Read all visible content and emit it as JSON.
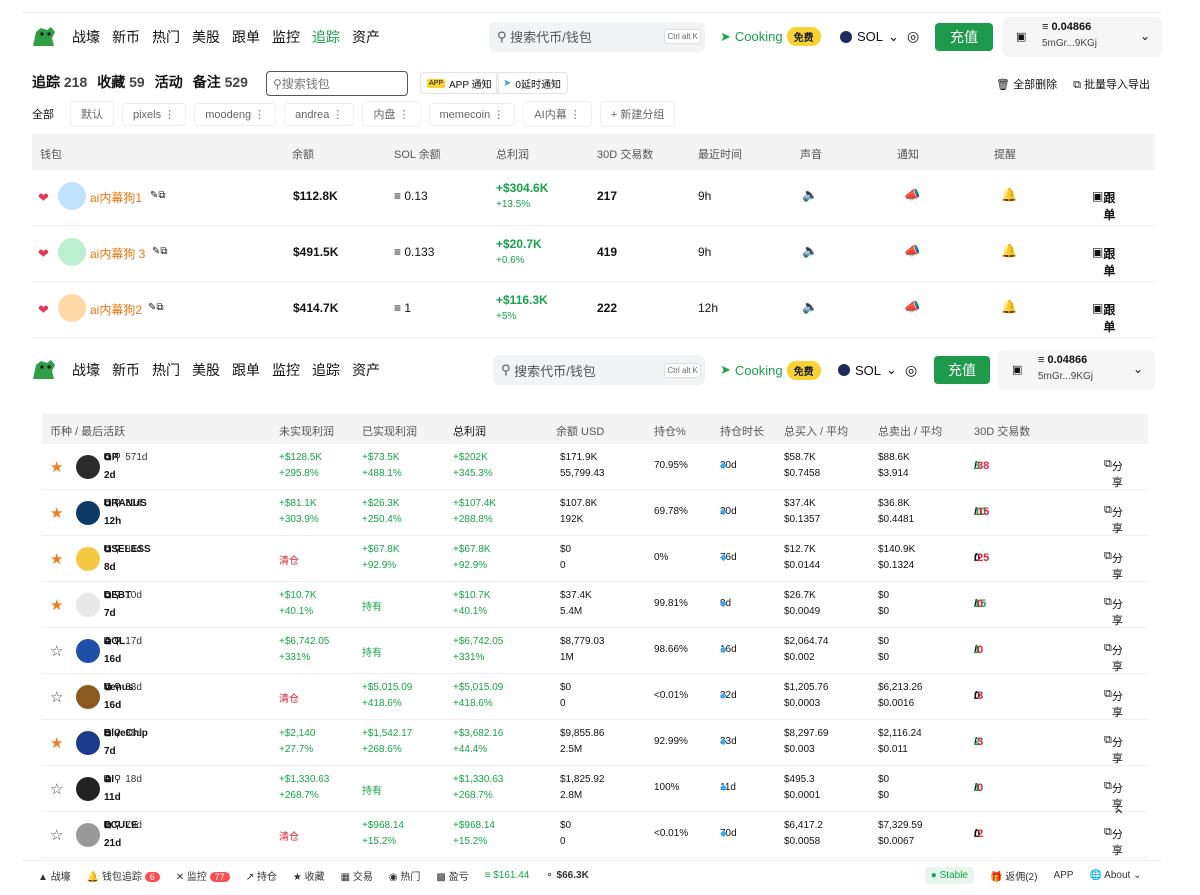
{
  "nav": {
    "items": [
      "战壕",
      "新币",
      "热门",
      "美股",
      "跟单",
      "监控",
      "追踪",
      "资产"
    ],
    "active_index": 6
  },
  "search": {
    "placeholder": "搜索代币/钱包",
    "shortcut": "Ctrl alt K"
  },
  "cooking": {
    "label": "Cooking",
    "badge": "免费"
  },
  "chain": {
    "label": "SOL"
  },
  "recharge": {
    "label": "充值"
  },
  "wallet": {
    "balance": "≡ 0.04866",
    "address": "5mGr...9KGj"
  },
  "stats": {
    "track_label": "追踪",
    "track": "218",
    "fav_label": "收藏",
    "fav": "59",
    "active_label": "活动",
    "active": "",
    "notes_label": "备注",
    "notes": "529"
  },
  "search2": {
    "placeholder": "搜索钱包"
  },
  "notify": {
    "app": "APP 通知",
    "tg": "0延时通知"
  },
  "actions": {
    "delete_all": "全部删除",
    "import": "批量导入导出"
  },
  "groups": {
    "all": "全部",
    "items": [
      "默认",
      "pixels ⋮",
      "moodeng ⋮",
      "andrea ⋮",
      "内盘 ⋮",
      "memecoin ⋮",
      "AI内幕 ⋮",
      "+ 新建分组"
    ]
  },
  "wallet_table": {
    "headers": [
      "钱包",
      "余额",
      "SOL 余额",
      "总利润",
      "30D 交易数",
      "最近时间",
      "声音",
      "通知",
      "提醒"
    ],
    "rows": [
      {
        "name": "ai内幕狗1",
        "balance": "$112.8K",
        "sol": "≡ 0.13",
        "profit": "+$304.6K",
        "pct": "+13.5%",
        "trades": "217",
        "time": "9h",
        "action": "跟单"
      },
      {
        "name": "ai内幕狗 3",
        "balance": "$491.5K",
        "sol": "≡ 0.133",
        "profit": "+$20.7K",
        "pct": "+0.6%",
        "trades": "419",
        "time": "9h",
        "action": "跟单"
      },
      {
        "name": "ai内幕狗2",
        "balance": "$414.7K",
        "sol": "≡ 1",
        "profit": "+$116.3K",
        "pct": "+5%",
        "trades": "222",
        "time": "12h",
        "action": "跟单"
      }
    ]
  },
  "token_table": {
    "headers": [
      "币种 / 最后活跃",
      "未实现利润",
      "已实现利润",
      "总利润",
      "余额  USD",
      "持仓%",
      "持仓时长",
      "总买入 / 平均",
      "总卖出 / 平均",
      "30D 交易数"
    ],
    "rows": [
      {
        "sym": "GP",
        "age": "571d",
        "last": "2d",
        "starred": true,
        "unreal": "+$128.5K",
        "unreal_p": "+295.8%",
        "real": "+$73.5K",
        "real_p": "+488.1%",
        "total": "+$202K",
        "total_p": "+345.3%",
        "bal": "$171.9K",
        "bal2": "55,799.43",
        "pct": "70.95%",
        "hold": "30d",
        "buy": "$58.7K",
        "buy2": "$0.7458",
        "sell": "$88.6K",
        "sell2": "$3.914",
        "tw": "3",
        "tl": "38",
        "color": "#2b2b2b"
      },
      {
        "sym": "URANUS",
        "age": "31d",
        "last": "12h",
        "starred": true,
        "unreal": "+$81.1K",
        "unreal_p": "+303.9%",
        "real": "+$26.3K",
        "real_p": "+250.4%",
        "total": "+$107.4K",
        "total_p": "+288.8%",
        "bal": "$107.8K",
        "bal2": "192K",
        "pct": "69.78%",
        "hold": "20d",
        "buy": "$37.4K",
        "buy2": "$0.1357",
        "sell": "$36.8K",
        "sell2": "$0.4481",
        "tw": "10",
        "tl": "15",
        "color": "#0d3b66"
      },
      {
        "sym": "USELESS",
        "age": "84d",
        "last": "8d",
        "starred": true,
        "unreal": "清仓",
        "unreal_p": "",
        "real": "+$67.8K",
        "real_p": "+92.9%",
        "total": "+$67.8K",
        "total_p": "+92.9%",
        "bal": "$0",
        "bal2": "0",
        "pct": "0%",
        "hold": "76d",
        "buy": "$12.7K",
        "buy2": "$0.0144",
        "sell": "$140.9K",
        "sell2": "$0.1324",
        "tw": "0",
        "tl": "25",
        "color": "#f5c842"
      },
      {
        "sym": "DEBT",
        "age": "10d",
        "last": "7d",
        "starred": true,
        "unreal": "+$10.7K",
        "unreal_p": "+40.1%",
        "real": "持有",
        "real_p": "",
        "total": "+$10.7K",
        "total_p": "+40.1%",
        "bal": "$37.4K",
        "bal2": "5.4M",
        "pct": "99.81%",
        "hold": "9d",
        "buy": "$26.7K",
        "buy2": "$0.0049",
        "sell": "$0",
        "sell2": "$0",
        "tw": "15",
        "tl": "0",
        "color": "#e8e8e8"
      },
      {
        "sym": "AOL",
        "age": "17d",
        "last": "16d",
        "starred": false,
        "unreal": "+$6,742.05",
        "unreal_p": "+331%",
        "real": "持有",
        "real_p": "",
        "total": "+$6,742.05",
        "total_p": "+331%",
        "bal": "$8,779.03",
        "bal2": "1M",
        "pct": "98.66%",
        "hold": "16d",
        "buy": "$2,064.74",
        "buy2": "$0.002",
        "sell": "$0",
        "sell2": "$0",
        "tw": "1",
        "tl": "0",
        "color": "#1f4fa8"
      },
      {
        "sym": "Venus",
        "age": "33d",
        "last": "16d",
        "starred": false,
        "unreal": "清仓",
        "unreal_p": "",
        "real": "+$5,015.09",
        "real_p": "+418.6%",
        "total": "+$5,015.09",
        "total_p": "+418.6%",
        "bal": "$0",
        "bal2": "0",
        "pct": "<0.01%",
        "hold": "32d",
        "buy": "$1,205.76",
        "buy2": "$0.0003",
        "sell": "$6,213.26",
        "sell2": "$0.0016",
        "tw": "0",
        "tl": "3",
        "color": "#8a5a1e"
      },
      {
        "sym": "BlueChip",
        "age": "38d",
        "last": "7d",
        "starred": true,
        "unreal": "+$2,140",
        "unreal_p": "+27.7%",
        "real": "+$1,542.17",
        "real_p": "+268.6%",
        "total": "+$3,682.16",
        "total_p": "+44.4%",
        "bal": "$9,855.86",
        "bal2": "2.5M",
        "pct": "92.99%",
        "hold": "33d",
        "buy": "$8,297.69",
        "buy2": "$0.003",
        "sell": "$2,116.24",
        "sell2": "$0.011",
        "tw": "2",
        "tl": "3",
        "color": "#1b3a8a"
      },
      {
        "sym": "AI",
        "age": "18d",
        "last": "11d",
        "starred": false,
        "unreal": "+$1,330.63",
        "unreal_p": "+268.7%",
        "real": "持有",
        "real_p": "",
        "total": "+$1,330.63",
        "total_p": "+268.7%",
        "bal": "$1,825.92",
        "bal2": "2.8M",
        "pct": "100%",
        "hold": "11d",
        "buy": "$495.3",
        "buy2": "$0.0001",
        "sell": "$0",
        "sell2": "$0",
        "tw": "1",
        "tl": "0",
        "color": "#222"
      },
      {
        "sym": "PCULE",
        "age": "79d",
        "last": "21d",
        "starred": false,
        "unreal": "清仓",
        "unreal_p": "",
        "real": "+$968.14",
        "real_p": "+15.2%",
        "total": "+$968.14",
        "total_p": "+15.2%",
        "bal": "$0",
        "bal2": "0",
        "pct": "<0.01%",
        "hold": "70d",
        "buy": "$6,417.2",
        "buy2": "$0.0058",
        "sell": "$7,329.59",
        "sell2": "$0.0067",
        "tw": "0",
        "tl": "2",
        "color": "#999"
      }
    ],
    "share": "分享"
  },
  "bottom": {
    "items": [
      "战壕",
      "钱包追踪",
      "监控",
      "持仓",
      "收藏",
      "交易",
      "热门",
      "盈亏"
    ],
    "wallet_badge": "6",
    "monitor_badge": "77",
    "sol_price": "$161.44",
    "other_price": "$66.3K",
    "stable": "Stable",
    "rebate": "返佣(2)",
    "app": "APP",
    "about": "About"
  }
}
